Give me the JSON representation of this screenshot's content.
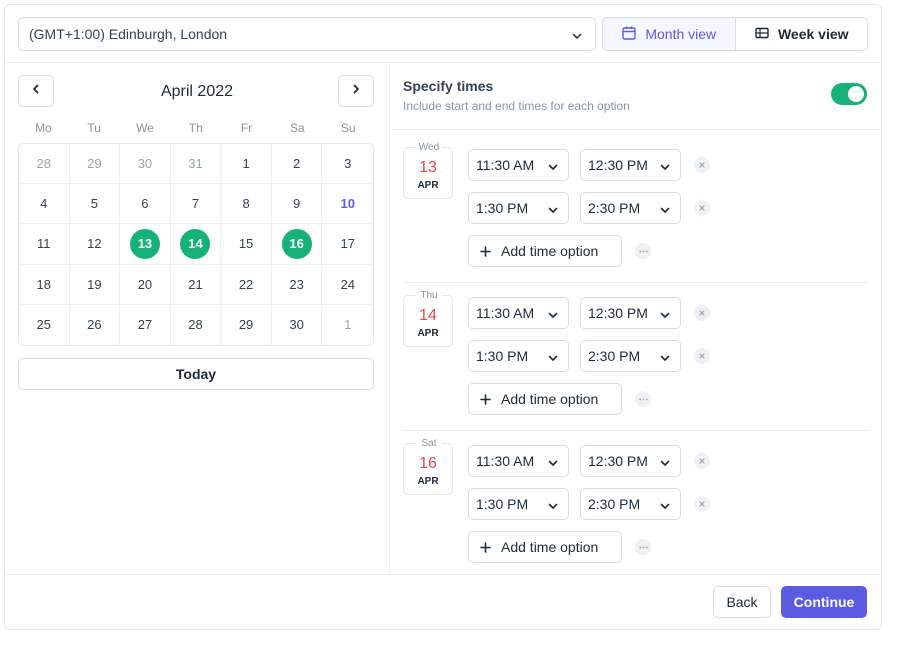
{
  "timezone": {
    "label": "(GMT+1:00) Edinburgh, London"
  },
  "view_toggle": {
    "month_label": "Month view",
    "week_label": "Week view",
    "active": "month"
  },
  "calendar": {
    "month_title": "April 2022",
    "weekdays": [
      "Mo",
      "Tu",
      "We",
      "Th",
      "Fr",
      "Sa",
      "Su"
    ],
    "days": [
      {
        "n": "28",
        "muted": true
      },
      {
        "n": "29",
        "muted": true
      },
      {
        "n": "30",
        "muted": true
      },
      {
        "n": "31",
        "muted": true
      },
      {
        "n": "1"
      },
      {
        "n": "2"
      },
      {
        "n": "3"
      },
      {
        "n": "4"
      },
      {
        "n": "5"
      },
      {
        "n": "6"
      },
      {
        "n": "7"
      },
      {
        "n": "8"
      },
      {
        "n": "9"
      },
      {
        "n": "10",
        "today": true
      },
      {
        "n": "11"
      },
      {
        "n": "12"
      },
      {
        "n": "13",
        "selected": true
      },
      {
        "n": "14",
        "selected": true
      },
      {
        "n": "15"
      },
      {
        "n": "16",
        "selected": true
      },
      {
        "n": "17"
      },
      {
        "n": "18"
      },
      {
        "n": "19"
      },
      {
        "n": "20"
      },
      {
        "n": "21"
      },
      {
        "n": "22"
      },
      {
        "n": "23"
      },
      {
        "n": "24"
      },
      {
        "n": "25"
      },
      {
        "n": "26"
      },
      {
        "n": "27"
      },
      {
        "n": "28"
      },
      {
        "n": "29"
      },
      {
        "n": "30"
      },
      {
        "n": "1",
        "muted": true
      }
    ],
    "today_label": "Today"
  },
  "specify_times": {
    "title": "Specify times",
    "subtitle": "Include start and end times for each option",
    "enabled": true
  },
  "day_blocks": [
    {
      "weekday": "Wed",
      "day": "13",
      "month": "APR",
      "slots": [
        {
          "start": "11:30 AM",
          "end": "12:30 PM"
        },
        {
          "start": "1:30 PM",
          "end": "2:30 PM"
        }
      ],
      "add_label": "Add time option"
    },
    {
      "weekday": "Thu",
      "day": "14",
      "month": "APR",
      "slots": [
        {
          "start": "11:30 AM",
          "end": "12:30 PM"
        },
        {
          "start": "1:30 PM",
          "end": "2:30 PM"
        }
      ],
      "add_label": "Add time option"
    },
    {
      "weekday": "Sat",
      "day": "16",
      "month": "APR",
      "slots": [
        {
          "start": "11:30 AM",
          "end": "12:30 PM"
        },
        {
          "start": "1:30 PM",
          "end": "2:30 PM"
        }
      ],
      "add_label": "Add time option"
    }
  ],
  "footer": {
    "back_label": "Back",
    "continue_label": "Continue"
  },
  "colors": {
    "accent": "#5b5ce2",
    "selected": "#15b176",
    "date_red": "#e5484d"
  }
}
